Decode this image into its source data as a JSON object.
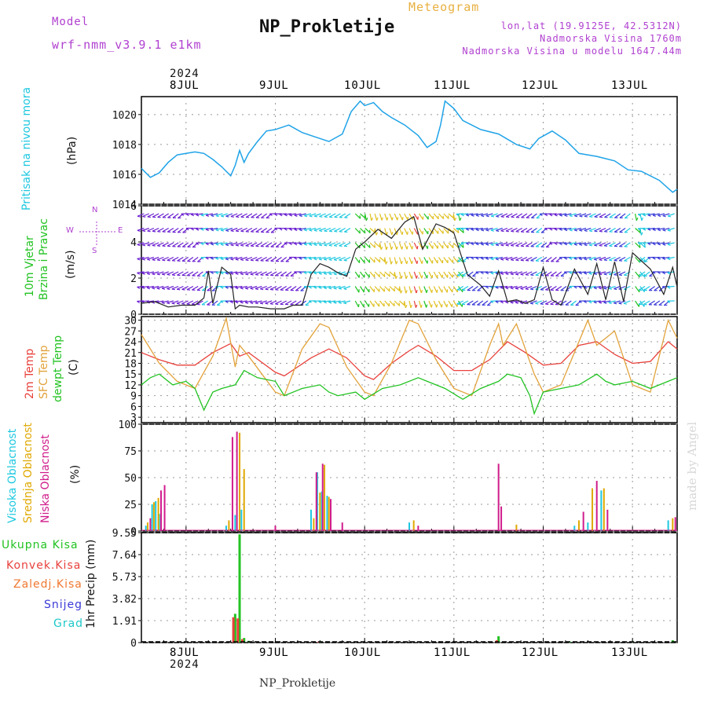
{
  "header": {
    "model_label": "Model",
    "model_value": "wrf-nmm_v3.9.1 e1km",
    "title": "NP_Prokletije",
    "subtitle": "Meteogram",
    "loc1": "lon,lat (19.9125E, 42.5312N)",
    "loc2": "Nadmorska Visina 1760m",
    "loc3": "Nadmorska Visina u modelu 1647.44m",
    "footer": "NP_Prokletije",
    "watermark": "made by Angel"
  },
  "x_axis": {
    "year": "2024",
    "days": [
      "8JUL",
      "9JUL",
      "10JUL",
      "11JUL",
      "12JUL",
      "13JUL"
    ]
  },
  "labels": {
    "p1_a": "Pritisak na nivou mora",
    "p1_u": "(hPa)",
    "p2_a": "10m Vjetar",
    "p2_b": "Brzina i Pravac",
    "p2_u": "(m/s)",
    "p3_a": "2m Temp",
    "p3_b": "SFC Temp",
    "p3_c": "dewpt Temp",
    "p3_u": "(C)",
    "p4_a": "Visoka Oblacnost",
    "p4_b": "Srednja Oblacnost",
    "p4_c": "Niska Oblacnost",
    "p4_u": "(%)",
    "p5_u": "1hr Precip (mm)",
    "rain": "Ukupna Kisa",
    "conv": "Konvek.Kisa",
    "frz": "Zaledj.Kisa",
    "snow": "Snijeg",
    "hail": "Grad",
    "compass_n": "N",
    "compass_w": "W",
    "compass_e": "E",
    "compass_s": "S"
  },
  "colors": {
    "pressure": "#1fa3e8",
    "t2m": "#e8413c",
    "sfc": "#e2a23a",
    "dew": "#22c322",
    "high_cloud": "#1ec8e0",
    "mid_cloud": "#e0a800",
    "low_cloud": "#d01c8c",
    "rain": "#22c322",
    "conv": "#e8413c",
    "title_purple": "#b040d0",
    "subtitle_orange": "#e8b040",
    "cyan_label": "#1ec8e0",
    "green_label": "#22c322"
  },
  "chart_data": [
    {
      "type": "line",
      "name": "pressure",
      "ylabel": "(hPa)",
      "ylim": [
        1014,
        1021.2
      ],
      "yticks": [
        "1014",
        "1016",
        "1018",
        "1020"
      ],
      "x": [
        7.5,
        7.6,
        7.7,
        7.8,
        7.9,
        8.0,
        8.1,
        8.2,
        8.3,
        8.4,
        8.5,
        8.55,
        8.6,
        8.65,
        8.7,
        8.8,
        8.9,
        9.0,
        9.15,
        9.3,
        9.45,
        9.6,
        9.75,
        9.85,
        9.95,
        10.0,
        10.1,
        10.2,
        10.3,
        10.45,
        10.6,
        10.7,
        10.8,
        10.85,
        10.9,
        11.0,
        11.1,
        11.3,
        11.5,
        11.7,
        11.85,
        11.95,
        12.1,
        12.25,
        12.4,
        12.6,
        12.8,
        12.95,
        13.1,
        13.3,
        13.45,
        13.5
      ],
      "values": [
        1016.4,
        1015.8,
        1016.1,
        1016.8,
        1017.3,
        1017.4,
        1017.5,
        1017.4,
        1017.0,
        1016.5,
        1015.9,
        1016.6,
        1017.6,
        1016.8,
        1017.4,
        1018.2,
        1018.9,
        1019.0,
        1019.3,
        1018.8,
        1018.5,
        1018.2,
        1018.7,
        1020.2,
        1020.9,
        1020.6,
        1020.8,
        1020.2,
        1019.8,
        1019.3,
        1018.6,
        1017.8,
        1018.2,
        1019.3,
        1020.9,
        1020.4,
        1019.6,
        1019.0,
        1018.7,
        1018.0,
        1017.7,
        1018.4,
        1018.9,
        1018.3,
        1017.4,
        1017.2,
        1016.9,
        1016.3,
        1016.2,
        1015.6,
        1014.8,
        1015.0
      ]
    },
    {
      "type": "line",
      "name": "wind",
      "ylabel": "(m/s)",
      "ylim": [
        0,
        6
      ],
      "yticks": [
        "0",
        "2",
        "4",
        "6"
      ],
      "series": [
        {
          "name": "speed",
          "x": [
            7.5,
            7.65,
            7.8,
            7.95,
            8.1,
            8.2,
            8.25,
            8.3,
            8.4,
            8.5,
            8.55,
            8.6,
            8.7,
            8.8,
            8.95,
            9.1,
            9.2,
            9.3,
            9.4,
            9.5,
            9.6,
            9.7,
            9.8,
            9.9,
            10.0,
            10.15,
            10.3,
            10.45,
            10.55,
            10.65,
            10.8,
            10.9,
            11.0,
            11.15,
            11.3,
            11.4,
            11.5,
            11.6,
            11.7,
            11.8,
            11.9,
            12.0,
            12.1,
            12.2,
            12.35,
            12.5,
            12.6,
            12.7,
            12.8,
            12.9,
            13.0,
            13.2,
            13.35,
            13.45,
            13.5
          ],
          "values": [
            0.6,
            0.7,
            0.4,
            0.5,
            0.5,
            0.9,
            2.4,
            0.6,
            2.6,
            2.2,
            0.3,
            0.5,
            0.4,
            0.4,
            0.3,
            0.3,
            0.5,
            0.5,
            2.2,
            2.8,
            2.6,
            2.3,
            2.1,
            3.6,
            4.0,
            4.7,
            4.2,
            5.1,
            5.4,
            3.6,
            5.0,
            4.8,
            4.5,
            2.2,
            1.6,
            1.0,
            2.4,
            0.7,
            0.8,
            0.6,
            0.8,
            2.6,
            0.8,
            0.5,
            2.5,
            1.1,
            2.8,
            0.8,
            2.9,
            0.7,
            3.4,
            2.5,
            1.1,
            2.6,
            1.5
          ]
        }
      ]
    },
    {
      "type": "line",
      "name": "temperature",
      "ylabel": "(C)",
      "ylim": [
        1.5,
        31
      ],
      "yticks": [
        "3",
        "6",
        "9",
        "12",
        "15",
        "18",
        "21",
        "24",
        "27",
        "30"
      ],
      "series": [
        {
          "name": "2m",
          "x": [
            7.5,
            7.7,
            7.9,
            8.1,
            8.3,
            8.5,
            8.6,
            8.7,
            9.0,
            9.1,
            9.4,
            9.6,
            9.8,
            10.0,
            10.1,
            10.3,
            10.5,
            10.6,
            10.8,
            11.0,
            11.2,
            11.4,
            11.6,
            11.8,
            12.0,
            12.2,
            12.4,
            12.6,
            12.8,
            13.0,
            13.2,
            13.4,
            13.5
          ],
          "values": [
            21,
            19,
            17.5,
            17.5,
            21,
            23.5,
            20,
            21,
            15.5,
            14.5,
            19.5,
            22,
            19.5,
            14.5,
            13.5,
            18,
            21.5,
            23,
            20,
            16,
            16,
            19,
            24,
            21,
            17.5,
            18,
            23,
            24,
            20.5,
            18,
            18.5,
            24,
            22
          ]
        },
        {
          "name": "SFC",
          "x": [
            7.5,
            7.7,
            7.9,
            8.1,
            8.3,
            8.45,
            8.55,
            8.6,
            8.7,
            9.0,
            9.1,
            9.3,
            9.5,
            9.6,
            9.8,
            10.0,
            10.1,
            10.3,
            10.5,
            10.6,
            10.8,
            11.0,
            11.2,
            11.4,
            11.5,
            11.55,
            11.7,
            11.9,
            12.0,
            12.2,
            12.5,
            12.6,
            12.8,
            13.0,
            13.2,
            13.4,
            13.5
          ],
          "values": [
            26,
            18,
            13,
            11,
            20,
            30.5,
            17,
            23,
            20,
            10,
            9,
            22,
            29,
            28,
            17,
            10,
            9,
            18,
            30,
            29,
            19,
            11,
            9,
            23,
            29,
            23,
            29,
            15,
            10,
            12,
            30,
            23,
            27,
            12,
            10,
            30,
            25
          ]
        },
        {
          "name": "dewpt",
          "x": [
            7.5,
            7.6,
            7.7,
            7.85,
            8.0,
            8.1,
            8.2,
            8.3,
            8.4,
            8.55,
            8.65,
            8.8,
            9.0,
            9.1,
            9.3,
            9.5,
            9.6,
            9.7,
            9.9,
            10.0,
            10.2,
            10.4,
            10.6,
            10.7,
            10.9,
            11.1,
            11.3,
            11.5,
            11.6,
            11.75,
            11.85,
            11.9,
            12.0,
            12.2,
            12.4,
            12.6,
            12.7,
            12.8,
            13.0,
            13.2,
            13.4,
            13.5
          ],
          "values": [
            12,
            14,
            15,
            12,
            13,
            11,
            5,
            10,
            11,
            12,
            16,
            14,
            13,
            9,
            11,
            12,
            10,
            9,
            10,
            8,
            11,
            12,
            14,
            13,
            11,
            8,
            11,
            13,
            15,
            14,
            9,
            4,
            10,
            11,
            12,
            15,
            13,
            12,
            13,
            11,
            13,
            14
          ]
        }
      ]
    },
    {
      "type": "bar",
      "name": "cloud",
      "ylabel": "(%)",
      "ylim": [
        0,
        100
      ],
      "yticks": [
        "0",
        "25",
        "50",
        "75",
        "100"
      ],
      "series": [
        {
          "name": "Visoka",
          "x": [
            7.55,
            7.62,
            7.66,
            7.7,
            8.45,
            8.55,
            8.62,
            9.4,
            9.47,
            9.52,
            9.58,
            10.5,
            12.35,
            12.5,
            12.65,
            13.4
          ],
          "values": [
            5,
            25,
            28,
            16,
            5,
            15,
            20,
            20,
            55,
            37,
            33,
            8,
            5,
            8,
            38,
            10
          ]
        },
        {
          "name": "Srednja",
          "x": [
            7.57,
            7.64,
            7.69,
            8.48,
            8.6,
            8.65,
            9.43,
            9.5,
            9.55,
            9.6,
            10.55,
            11.7,
            12.4,
            12.55,
            12.68,
            13.45
          ],
          "values": [
            8,
            27,
            31,
            10,
            92,
            58,
            12,
            36,
            62,
            32,
            10,
            6,
            10,
            40,
            40,
            12
          ]
        },
        {
          "name": "Niska",
          "x": [
            7.6,
            7.72,
            7.76,
            8.52,
            8.57,
            9.0,
            9.46,
            9.53,
            9.62,
            9.75,
            10.6,
            11.5,
            11.53,
            12.45,
            12.6,
            12.72,
            13.48
          ],
          "values": [
            12,
            38,
            43,
            88,
            93,
            5,
            55,
            63,
            30,
            8,
            5,
            63,
            23,
            18,
            47,
            20,
            13
          ]
        }
      ]
    },
    {
      "type": "bar",
      "name": "precip",
      "ylabel": "1hr Precip (mm)",
      "ylim": [
        0,
        9.55
      ],
      "yticks": [
        "0",
        "1.91",
        "3.82",
        "5.73",
        "7.64",
        "9.55"
      ],
      "series": [
        {
          "name": "Ukupna Kisa",
          "x": [
            8.55,
            8.6,
            8.65,
            8.7,
            9.5,
            11.5,
            12.3,
            13.0,
            13.45
          ],
          "values": [
            2.5,
            9.4,
            0.4,
            0.15,
            0.1,
            0.55,
            0.05,
            0.05,
            0.2
          ]
        },
        {
          "name": "Konvek.Kisa",
          "x": [
            8.53,
            8.58,
            8.63,
            9.48,
            11.48
          ],
          "values": [
            2.2,
            2.1,
            0.3,
            0.05,
            0.2
          ]
        }
      ]
    }
  ]
}
